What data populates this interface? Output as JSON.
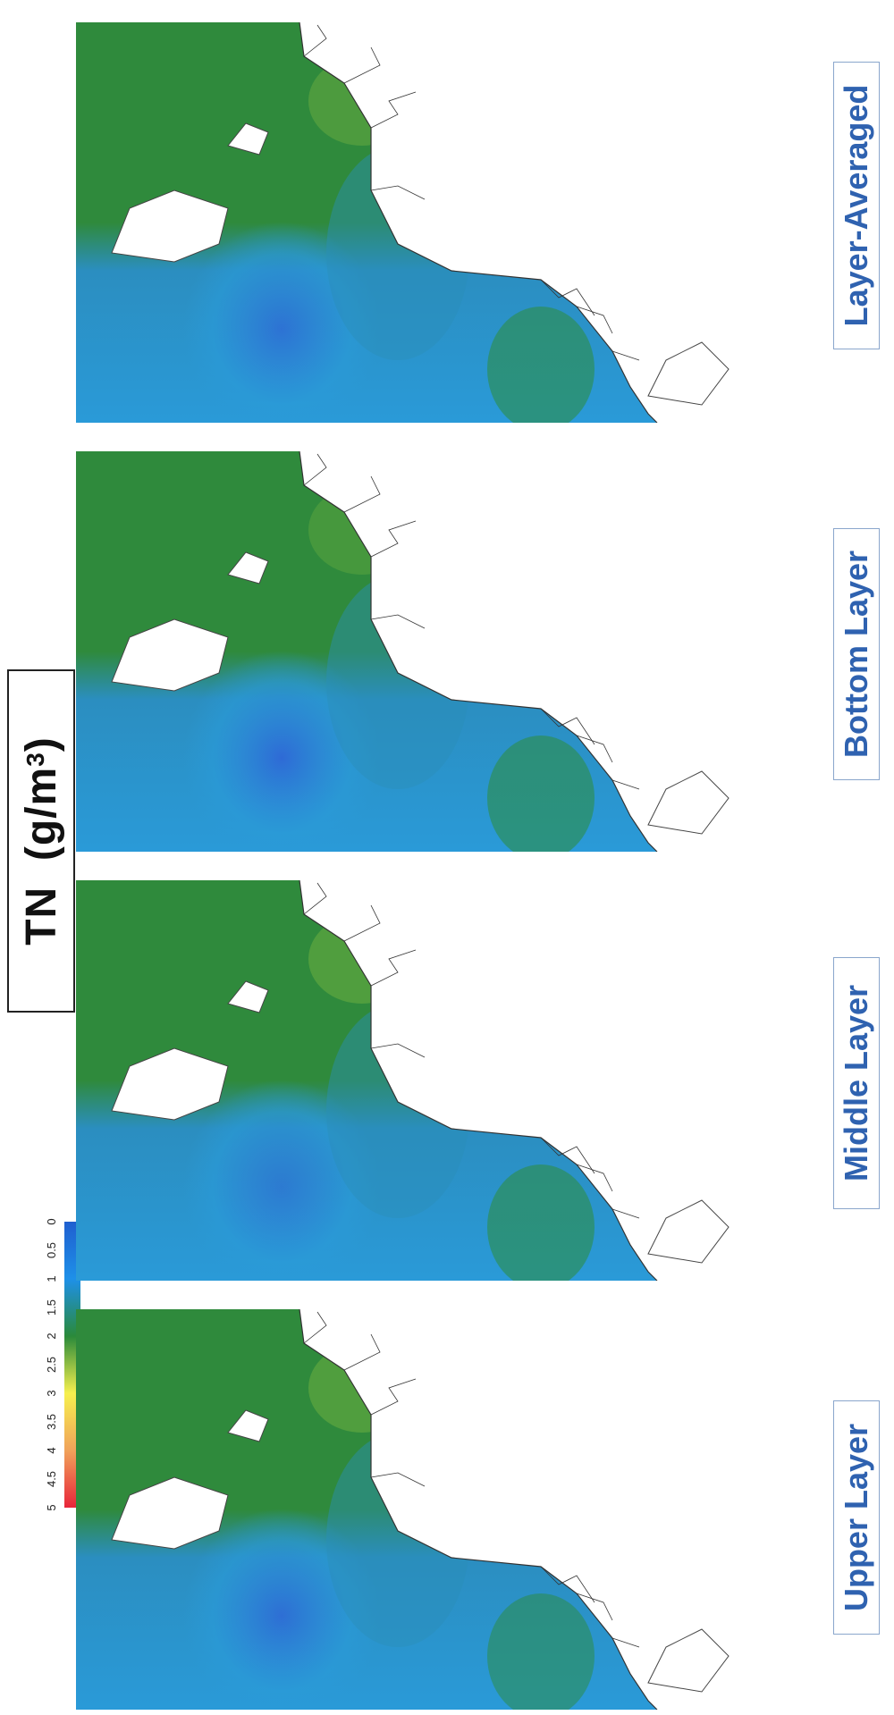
{
  "title": {
    "main": "TN",
    "unit_prefix": "(g/m",
    "unit_sup": "3",
    "unit_suffix": ")"
  },
  "colorbar": {
    "ticks": [
      "5",
      "4.5",
      "4",
      "3.5",
      "3",
      "2.5",
      "2",
      "1.5",
      "1",
      "0.5",
      "0"
    ],
    "range": [
      0,
      5
    ],
    "colors": [
      "#e8253a",
      "#f0a25a",
      "#f6f04e",
      "#2a8a3a",
      "#1e90e8",
      "#1f5fd0"
    ]
  },
  "panels": [
    {
      "label": "Upper Layer"
    },
    {
      "label": "Middle Layer"
    },
    {
      "label": "Bottom Layer"
    },
    {
      "label": "Layer-Averaged"
    }
  ],
  "colors": {
    "water_high": "#f3f157",
    "water_mid": "#2f8a3c",
    "water_low": "#2a9ad8",
    "water_lowest": "#2e6ad6",
    "land": "#ffffff",
    "label_text": "#2f62b0"
  }
}
